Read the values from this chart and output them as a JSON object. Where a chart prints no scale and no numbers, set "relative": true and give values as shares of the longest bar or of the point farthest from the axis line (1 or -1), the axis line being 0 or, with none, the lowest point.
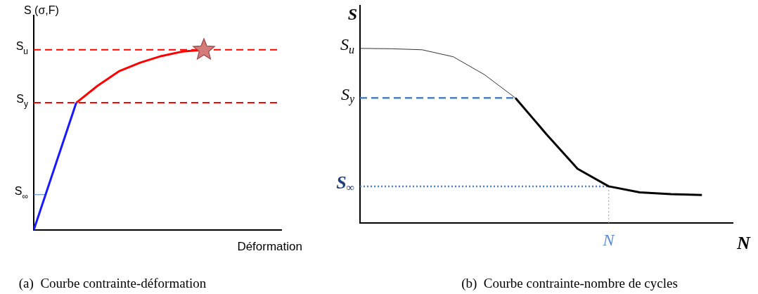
{
  "chart_data": [
    {
      "type": "line",
      "xlabel": "Déformation",
      "ylabel": "S (σ,F)",
      "relative": true,
      "marker": "none",
      "legend": false,
      "grid": false,
      "categories": [
        null,
        null,
        null,
        null,
        null,
        null,
        null,
        null,
        null
      ],
      "series": [
        {
          "color": "#1a1aff",
          "values": [
            0,
            0.353,
            0.706,
            null,
            null,
            null,
            null,
            null,
            null
          ]
        },
        {
          "color": "#ff0000",
          "values": [
            null,
            null,
            0.706,
            0.8,
            0.88,
            0.928,
            0.965,
            0.99,
            1
          ]
        }
      ],
      "ref_lines": [
        {
          "axis": "y",
          "value": 1,
          "label": "S$_{u}$",
          "color": "#ff0000",
          "line_style": "dashed"
        },
        {
          "axis": "y",
          "value": 0.706,
          "label": "S$_{y}$",
          "color": "#ff0000",
          "line_style": "dashed"
        },
        {
          "axis": "y",
          "value": 0.196,
          "label": "S$_{∞}$",
          "color": "#4f81bd",
          "line_style": "solid"
        }
      ],
      "annotations": [
        "(a)  Courbe contrainte-déformation"
      ]
    },
    {
      "type": "line",
      "xlabel": "N",
      "ylabel": "S",
      "relative": true,
      "marker": "none",
      "legend": false,
      "grid": false,
      "categories": [
        null,
        null,
        null,
        null,
        null,
        null,
        null,
        null,
        null,
        null,
        null,
        null
      ],
      "series": [
        {
          "color": "#000000",
          "values": [
            1,
            0.998,
            0.992,
            0.952,
            0.85,
            0.716,
            null,
            null,
            null,
            null,
            null,
            null
          ]
        },
        {
          "color": "#000000",
          "values": [
            null,
            null,
            null,
            null,
            null,
            0.716,
            0.508,
            0.31,
            0.21,
            0.175,
            0.165,
            0.16
          ]
        }
      ],
      "ref_lines": [
        {
          "axis": "y",
          "value": 0.716,
          "label": "S$_{y}$",
          "color": "#4f81bd",
          "line_style": "dashed"
        },
        {
          "axis": "y",
          "value": 0.21,
          "label": "S$_{∞}$",
          "color": "#4f81bd",
          "line_style": "dotted"
        }
      ],
      "annotations": [
        "S$_{u}$",
        "N",
        "(b)  Courbe contrainte-nombre de cycles"
      ]
    }
  ]
}
